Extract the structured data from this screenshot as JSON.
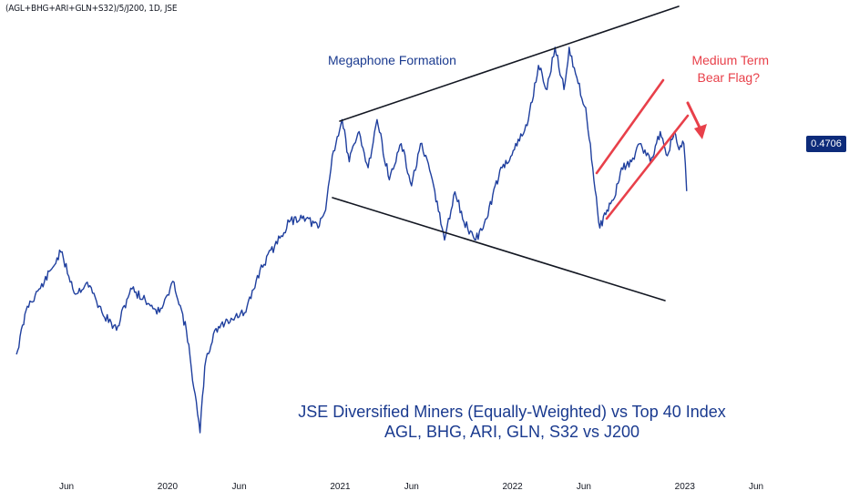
{
  "header": {
    "symbol_title": "(AGL+BHG+ARI+GLN+S32)/5/J200, 1D, JSE"
  },
  "price_label": {
    "value": "0.4706"
  },
  "annotations": {
    "megaphone": "Megaphone Formation",
    "bear_flag_line1": "Medium Term",
    "bear_flag_line2": "Bear Flag?",
    "caption_line1": "JSE Diversified Miners (Equally-Weighted) vs Top 40 Index",
    "caption_line2": "AGL, BHG, ARI, GLN, S32 vs J200"
  },
  "colors": {
    "series": "#1f3f9e",
    "caption": "#1a3a8f",
    "bear_flag": "#e8404a",
    "trendline": "#131722",
    "price_tag_bg": "#0d2b7a"
  },
  "chart_data": {
    "type": "line",
    "x_axis": {
      "tick_labels": [
        "Jun",
        "2020",
        "Jun",
        "2021",
        "Jun",
        "2022",
        "Jun",
        "2023",
        "Jun"
      ],
      "tick_dates": [
        "2019-06-01",
        "2020-01-01",
        "2020-06-01",
        "2021-01-01",
        "2021-06-01",
        "2022-01-01",
        "2022-06-01",
        "2023-01-01",
        "2023-06-01"
      ],
      "range": [
        "2019-02-15",
        "2023-09-30"
      ]
    },
    "series": [
      {
        "x": [
          "2019-02-15",
          "2019-03-10",
          "2019-04-15",
          "2019-05-20",
          "2019-06-20",
          "2019-07-15",
          "2019-08-15",
          "2019-09-15",
          "2019-10-15",
          "2019-11-15",
          "2019-12-15",
          "2020-01-15",
          "2020-02-10",
          "2020-03-10",
          "2020-03-20",
          "2020-04-10",
          "2020-05-15",
          "2020-06-15",
          "2020-07-15",
          "2020-08-15",
          "2020-09-15",
          "2020-10-15",
          "2020-11-15",
          "2020-12-01",
          "2020-12-15",
          "2021-01-05",
          "2021-01-20",
          "2021-02-10",
          "2021-03-01",
          "2021-03-20",
          "2021-04-15",
          "2021-05-10",
          "2021-06-01",
          "2021-06-20",
          "2021-07-15",
          "2021-08-10",
          "2021-09-01",
          "2021-09-20",
          "2021-10-15",
          "2021-11-10",
          "2021-11-25",
          "2021-12-10",
          "2022-01-05",
          "2022-02-01",
          "2022-02-25",
          "2022-03-15",
          "2022-04-01",
          "2022-04-20",
          "2022-05-01",
          "2022-05-20",
          "2022-06-05",
          "2022-06-20",
          "2022-07-05",
          "2022-07-20",
          "2022-08-05",
          "2022-08-20",
          "2022-09-10",
          "2022-09-30",
          "2022-10-20",
          "2022-11-10",
          "2022-11-25",
          "2022-12-10",
          "2022-12-20",
          "2022-12-30",
          "2023-01-05"
        ],
        "values": [
          0.335,
          0.375,
          0.395,
          0.42,
          0.385,
          0.395,
          0.37,
          0.355,
          0.39,
          0.38,
          0.37,
          0.395,
          0.355,
          0.27,
          0.325,
          0.355,
          0.365,
          0.37,
          0.405,
          0.425,
          0.445,
          0.45,
          0.44,
          0.455,
          0.5,
          0.53,
          0.495,
          0.52,
          0.49,
          0.53,
          0.48,
          0.51,
          0.475,
          0.51,
          0.48,
          0.43,
          0.47,
          0.445,
          0.43,
          0.45,
          0.475,
          0.49,
          0.505,
          0.525,
          0.575,
          0.555,
          0.59,
          0.555,
          0.59,
          0.56,
          0.54,
          0.49,
          0.44,
          0.455,
          0.465,
          0.49,
          0.495,
          0.51,
          0.495,
          0.52,
          0.5,
          0.52,
          0.505,
          0.51,
          0.4706
        ]
      }
    ],
    "last_value": 0.4706,
    "grid": false,
    "scale": "linear"
  }
}
